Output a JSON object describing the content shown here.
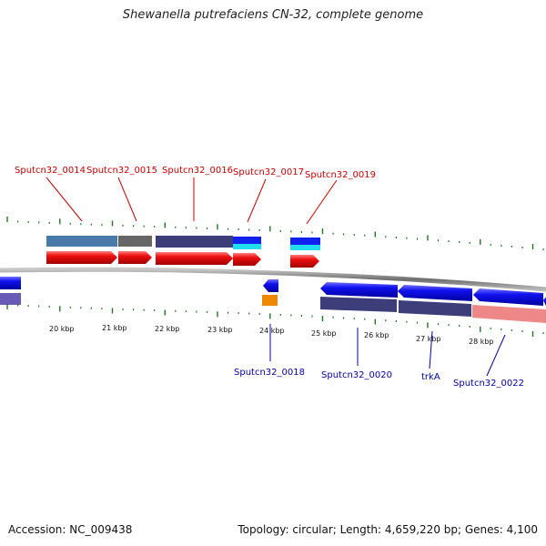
{
  "title": "Shewanella putrefaciens CN-32, complete genome",
  "footer": {
    "accession": "Accession: NC_009438",
    "topology": "Topology: circular; Length: 4,659,220 bp; Genes: 4,100"
  },
  "colors": {
    "forward_label": "#cc0000",
    "reverse_label": "#0000aa",
    "cds_forward": "#ee1111",
    "cds_reverse": "#1111ee",
    "backbone": "#777777",
    "tick": "#227722"
  },
  "position_ticks": [
    "20 kbp",
    "21 kbp",
    "22 kbp",
    "23 kbp",
    "24 kbp",
    "25 kbp",
    "26 kbp",
    "27 kbp",
    "28 kbp"
  ],
  "genes_forward": [
    {
      "id": "f14",
      "label": "Sputcn32_0014"
    },
    {
      "id": "f15",
      "label": "Sputcn32_0015"
    },
    {
      "id": "f16",
      "label": "Sputcn32_0016"
    },
    {
      "id": "f17",
      "label": "Sputcn32_0017"
    },
    {
      "id": "f19",
      "label": "Sputcn32_0019"
    }
  ],
  "genes_reverse": [
    {
      "id": "r18",
      "label": "Sputcn32_0018"
    },
    {
      "id": "r20",
      "label": "Sputcn32_0020"
    },
    {
      "id": "r21",
      "label": "trkA"
    },
    {
      "id": "r22",
      "label": "Sputcn32_0022"
    }
  ]
}
